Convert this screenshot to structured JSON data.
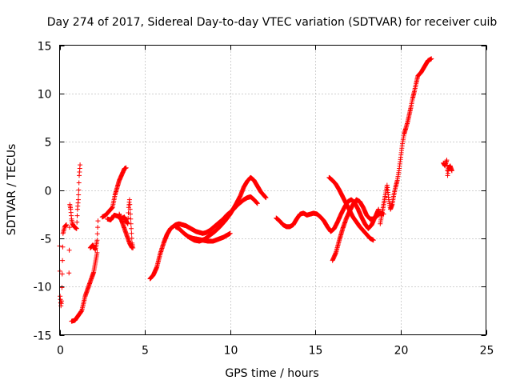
{
  "chart_data": {
    "type": "scatter",
    "title": "Day 274 of 2017, Sidereal Day-to-day VTEC variation (SDTVAR) for receiver cuib",
    "xlabel": "GPS time / hours",
    "ylabel": "SDTVAR / TECUs",
    "xlim": [
      0,
      25
    ],
    "ylim": [
      -15,
      15
    ],
    "xticks": [
      0,
      5,
      10,
      15,
      20,
      25
    ],
    "yticks": [
      -15,
      -10,
      -5,
      0,
      5,
      10,
      15
    ],
    "grid": true,
    "marker": "+",
    "color": "#ff0000",
    "segments": [
      [
        [
          0.0,
          -5.8
        ],
        [
          0.03,
          -11.0
        ],
        [
          0.08,
          -12.0
        ],
        [
          0.12,
          -11.5
        ],
        [
          0.2,
          -4.5
        ],
        [
          0.3,
          -3.8
        ],
        [
          0.4,
          -3.6
        ]
      ],
      [
        [
          0.55,
          -8.6
        ],
        [
          0.6,
          -1.5
        ],
        [
          0.65,
          -2.0
        ],
        [
          0.7,
          -3.0
        ],
        [
          0.75,
          -3.5
        ],
        [
          0.85,
          -3.8
        ],
        [
          1.0,
          -4.0
        ],
        [
          1.05,
          -2.0
        ],
        [
          1.1,
          -1.0
        ],
        [
          1.12,
          0.0
        ],
        [
          1.15,
          1.5
        ],
        [
          1.2,
          2.6
        ]
      ],
      [
        [
          0.7,
          -13.6
        ],
        [
          0.9,
          -13.5
        ],
        [
          1.1,
          -13.0
        ],
        [
          1.3,
          -12.5
        ],
        [
          1.5,
          -11.0
        ],
        [
          1.7,
          -10.0
        ],
        [
          1.9,
          -9.0
        ],
        [
          2.0,
          -8.5
        ],
        [
          2.1,
          -7.5
        ],
        [
          2.2,
          -6.5
        ]
      ],
      [
        [
          1.8,
          -6.0
        ],
        [
          1.95,
          -5.7
        ],
        [
          2.1,
          -6.2
        ],
        [
          2.2,
          -5.2
        ],
        [
          2.25,
          -3.2
        ]
      ],
      [
        [
          2.5,
          -2.8
        ],
        [
          2.7,
          -2.6
        ],
        [
          2.9,
          -2.2
        ],
        [
          3.1,
          -1.8
        ],
        [
          3.25,
          -0.5
        ],
        [
          3.4,
          0.4
        ],
        [
          3.5,
          1.0
        ],
        [
          3.65,
          1.6
        ],
        [
          3.8,
          2.2
        ],
        [
          3.9,
          2.3
        ]
      ],
      [
        [
          2.8,
          -3.0
        ],
        [
          3.0,
          -3.1
        ],
        [
          3.2,
          -2.6
        ],
        [
          3.4,
          -2.7
        ],
        [
          3.6,
          -3.0
        ],
        [
          3.8,
          -2.8
        ],
        [
          3.9,
          -3.2
        ],
        [
          4.0,
          -3.5
        ],
        [
          4.05,
          -1.8
        ],
        [
          4.1,
          -1.0
        ],
        [
          4.15,
          -2.5
        ],
        [
          4.2,
          -4.0
        ],
        [
          4.25,
          -5.5
        ],
        [
          4.3,
          -6.0
        ]
      ],
      [
        [
          3.5,
          -2.5
        ],
        [
          3.7,
          -3.5
        ],
        [
          3.9,
          -4.5
        ],
        [
          4.1,
          -5.5
        ],
        [
          4.25,
          -6.0
        ]
      ],
      [
        [
          5.3,
          -9.2
        ],
        [
          5.5,
          -8.8
        ],
        [
          5.7,
          -8.0
        ],
        [
          5.9,
          -6.6
        ],
        [
          6.1,
          -5.5
        ],
        [
          6.3,
          -4.6
        ],
        [
          6.5,
          -4.0
        ],
        [
          6.8,
          -3.6
        ],
        [
          7.0,
          -3.5
        ],
        [
          7.2,
          -3.6
        ],
        [
          7.4,
          -3.7
        ],
        [
          7.6,
          -3.9
        ],
        [
          7.8,
          -4.1
        ],
        [
          8.0,
          -4.3
        ],
        [
          8.2,
          -4.4
        ],
        [
          8.4,
          -4.5
        ],
        [
          8.6,
          -4.4
        ],
        [
          8.8,
          -4.2
        ],
        [
          9.0,
          -3.9
        ],
        [
          9.2,
          -3.6
        ],
        [
          9.4,
          -3.3
        ],
        [
          9.6,
          -3.0
        ],
        [
          9.8,
          -2.6
        ],
        [
          10.0,
          -2.3
        ],
        [
          10.2,
          -2.0
        ],
        [
          10.4,
          -1.6
        ],
        [
          10.6,
          -1.3
        ],
        [
          10.8,
          -1.0
        ],
        [
          11.0,
          -0.8
        ],
        [
          11.2,
          -0.7
        ],
        [
          11.4,
          -1.0
        ],
        [
          11.6,
          -1.4
        ]
      ],
      [
        [
          6.8,
          -3.8
        ],
        [
          7.0,
          -4.0
        ],
        [
          7.3,
          -4.5
        ],
        [
          7.6,
          -4.9
        ],
        [
          7.9,
          -5.2
        ],
        [
          8.2,
          -5.3
        ],
        [
          8.5,
          -5.1
        ],
        [
          8.8,
          -4.7
        ],
        [
          9.1,
          -4.3
        ],
        [
          9.4,
          -3.8
        ],
        [
          9.7,
          -3.2
        ],
        [
          10.0,
          -2.5
        ],
        [
          10.3,
          -1.6
        ],
        [
          10.6,
          -0.6
        ],
        [
          10.8,
          0.3
        ],
        [
          11.0,
          0.9
        ],
        [
          11.2,
          1.3
        ],
        [
          11.4,
          1.0
        ],
        [
          11.6,
          0.4
        ],
        [
          11.8,
          -0.2
        ],
        [
          12.0,
          -0.6
        ],
        [
          12.1,
          -0.8
        ]
      ],
      [
        [
          7.5,
          -4.8
        ],
        [
          7.8,
          -5.0
        ],
        [
          8.1,
          -5.1
        ],
        [
          8.4,
          -5.2
        ],
        [
          8.7,
          -5.3
        ],
        [
          9.0,
          -5.3
        ],
        [
          9.3,
          -5.1
        ],
        [
          9.6,
          -4.9
        ],
        [
          9.8,
          -4.7
        ],
        [
          10.0,
          -4.5
        ]
      ],
      [
        [
          12.7,
          -2.9
        ],
        [
          12.9,
          -3.2
        ],
        [
          13.1,
          -3.6
        ],
        [
          13.3,
          -3.8
        ],
        [
          13.5,
          -3.8
        ],
        [
          13.7,
          -3.6
        ],
        [
          13.9,
          -3.0
        ],
        [
          14.1,
          -2.5
        ],
        [
          14.3,
          -2.4
        ],
        [
          14.5,
          -2.6
        ],
        [
          14.7,
          -2.5
        ],
        [
          14.9,
          -2.4
        ],
        [
          15.1,
          -2.5
        ],
        [
          15.3,
          -2.8
        ],
        [
          15.5,
          -3.2
        ],
        [
          15.7,
          -3.8
        ],
        [
          15.9,
          -4.3
        ],
        [
          16.1,
          -4.0
        ],
        [
          16.3,
          -3.3
        ],
        [
          16.5,
          -2.5
        ],
        [
          16.7,
          -1.8
        ],
        [
          16.9,
          -1.2
        ],
        [
          17.1,
          -1.0
        ],
        [
          17.3,
          -1.3
        ],
        [
          17.5,
          -2.0
        ],
        [
          17.7,
          -2.8
        ],
        [
          17.9,
          -3.5
        ],
        [
          18.1,
          -4.0
        ],
        [
          18.3,
          -3.6
        ],
        [
          18.5,
          -2.8
        ],
        [
          18.7,
          -2.0
        ]
      ],
      [
        [
          15.8,
          1.3
        ],
        [
          16.0,
          1.0
        ],
        [
          16.2,
          0.6
        ],
        [
          16.4,
          0.0
        ],
        [
          16.6,
          -0.7
        ],
        [
          16.8,
          -1.4
        ],
        [
          17.0,
          -2.1
        ],
        [
          17.2,
          -2.8
        ],
        [
          17.4,
          -3.3
        ],
        [
          17.6,
          -3.8
        ],
        [
          17.8,
          -4.2
        ],
        [
          18.0,
          -4.6
        ],
        [
          18.2,
          -5.0
        ],
        [
          18.4,
          -5.2
        ]
      ],
      [
        [
          16.0,
          -7.3
        ],
        [
          16.2,
          -6.5
        ],
        [
          16.4,
          -5.2
        ],
        [
          16.6,
          -4.0
        ],
        [
          16.8,
          -3.0
        ],
        [
          17.0,
          -2.2
        ],
        [
          17.2,
          -1.5
        ],
        [
          17.4,
          -1.0
        ],
        [
          17.6,
          -1.2
        ],
        [
          17.8,
          -1.8
        ],
        [
          18.0,
          -2.6
        ],
        [
          18.2,
          -3.0
        ],
        [
          18.4,
          -3.0
        ],
        [
          18.6,
          -2.7
        ],
        [
          18.8,
          -2.4
        ],
        [
          19.0,
          -2.5
        ]
      ],
      [
        [
          18.8,
          -3.5
        ],
        [
          18.9,
          -2.5
        ],
        [
          19.0,
          -1.5
        ],
        [
          19.1,
          -0.5
        ],
        [
          19.2,
          0.5
        ],
        [
          19.3,
          -1.0
        ],
        [
          19.4,
          -2.0
        ],
        [
          19.5,
          -1.5
        ],
        [
          19.6,
          -0.5
        ],
        [
          19.7,
          0.3
        ],
        [
          19.8,
          1.0
        ],
        [
          19.9,
          2.0
        ],
        [
          20.0,
          3.4
        ],
        [
          20.1,
          4.8
        ],
        [
          20.2,
          5.8
        ],
        [
          20.3,
          6.4
        ],
        [
          20.4,
          7.0
        ],
        [
          20.5,
          7.8
        ],
        [
          20.6,
          8.6
        ],
        [
          20.7,
          9.5
        ],
        [
          20.8,
          10.2
        ],
        [
          20.9,
          11.0
        ],
        [
          21.0,
          11.8
        ],
        [
          21.2,
          12.2
        ],
        [
          21.4,
          12.8
        ],
        [
          21.6,
          13.4
        ],
        [
          21.8,
          13.6
        ]
      ],
      [
        [
          22.5,
          2.8
        ],
        [
          22.6,
          2.5
        ],
        [
          22.7,
          3.1
        ],
        [
          22.75,
          1.5
        ],
        [
          22.8,
          2.2
        ],
        [
          22.9,
          2.5
        ],
        [
          23.0,
          2.0
        ]
      ]
    ]
  }
}
